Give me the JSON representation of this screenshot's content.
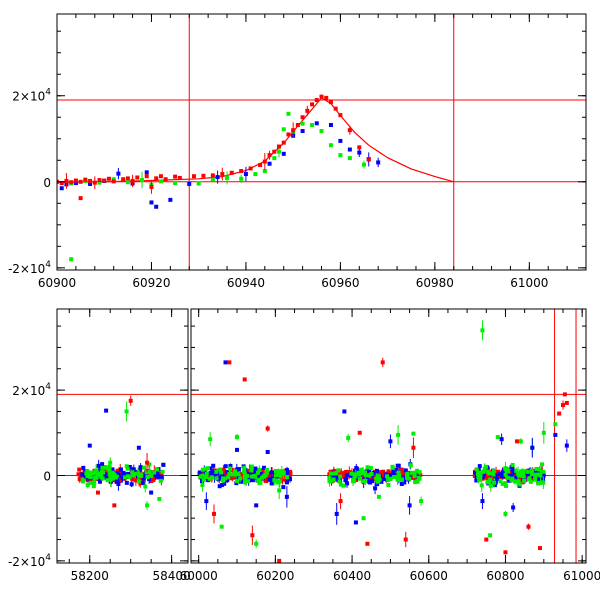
{
  "chart_data": [
    {
      "type": "scatter",
      "panel": "top",
      "title": "",
      "xlabel": "",
      "ylabel": "",
      "xlim": [
        60900,
        61012
      ],
      "ylim": [
        -20500,
        39000
      ],
      "x_ticks": [
        60900,
        60920,
        60940,
        60960,
        60980,
        61000
      ],
      "y_ticks": [
        {
          "value": -20000,
          "base": "-2×10",
          "exp": "4"
        },
        {
          "value": 0,
          "base": "0",
          "exp": ""
        },
        {
          "value": 20000,
          "base": "2×10",
          "exp": "4"
        }
      ],
      "hlines": [
        0,
        19000
      ],
      "vlines": [
        60928,
        60984
      ],
      "model_curve": {
        "color": "#ff0000",
        "x": [
          60900,
          60910,
          60920,
          60930,
          60935,
          60940,
          60944,
          60948,
          60951,
          60954,
          60956,
          60958,
          60960,
          60963,
          60966,
          60970,
          60975,
          60980,
          60984
        ],
        "y": [
          -120,
          0,
          300,
          700,
          1200,
          2600,
          4800,
          9000,
          13000,
          16900,
          19500,
          18200,
          15400,
          11500,
          8500,
          5600,
          3000,
          1200,
          0
        ]
      },
      "series": [
        {
          "name": "green",
          "color": "#00ee00",
          "x": [
            60901,
            60903,
            60906,
            60909,
            60912,
            60915,
            60918,
            60920,
            60922,
            60925,
            60930,
            60933,
            60936,
            60939,
            60942,
            60944,
            60946,
            60947,
            60948,
            60949,
            60950,
            60952,
            60954,
            60956,
            60958,
            60960,
            60962,
            60965,
            60903
          ],
          "y": [
            -300,
            -400,
            200,
            -200,
            600,
            -100,
            400,
            -700,
            100,
            -300,
            -400,
            500,
            900,
            700,
            1800,
            2500,
            5500,
            7000,
            12200,
            15800,
            11500,
            13500,
            13200,
            11800,
            8500,
            6200,
            5500,
            4000,
            -18000
          ]
        },
        {
          "name": "blue",
          "color": "#0000ff",
          "x": [
            60901,
            60902,
            60904,
            60907,
            60910,
            60913,
            60916,
            60919,
            60920,
            60921,
            60924,
            60928,
            60934,
            60940,
            60945,
            60948,
            60950,
            60952,
            60955,
            60958,
            60960,
            60962,
            60964,
            60966,
            60968
          ],
          "y": [
            -1500,
            -600,
            -300,
            -500,
            200,
            1900,
            -400,
            2200,
            -4800,
            -5800,
            -4200,
            -500,
            1100,
            1800,
            4200,
            6500,
            10700,
            11800,
            13600,
            13200,
            9500,
            7500,
            6800,
            5200,
            4500
          ]
        },
        {
          "name": "red",
          "color": "#ff0000",
          "x": [
            60900,
            60901,
            60902,
            60903,
            60904,
            60905,
            60906,
            60907,
            60908,
            60909,
            60910,
            60911,
            60912,
            60914,
            60915,
            60916,
            60917,
            60919,
            60920,
            60921,
            60922,
            60923,
            60925,
            60926,
            60929,
            60931,
            60933,
            60935,
            60937,
            60939,
            60941,
            60943,
            60944,
            60945,
            60946,
            60947,
            60948,
            60949,
            60950,
            60951,
            60952,
            60953,
            60954,
            60955,
            60956,
            60957,
            60958,
            60959,
            60960,
            60962,
            60964,
            60966,
            60905
          ],
          "y": [
            0,
            -300,
            200,
            -100,
            300,
            0,
            500,
            200,
            -200,
            400,
            300,
            700,
            100,
            600,
            800,
            200,
            1000,
            1300,
            -1200,
            800,
            1300,
            600,
            1200,
            900,
            1300,
            1400,
            1500,
            1800,
            2100,
            2500,
            3100,
            3900,
            4700,
            6200,
            7000,
            8200,
            9100,
            11000,
            12000,
            13200,
            15000,
            16500,
            18000,
            19000,
            19800,
            19500,
            18500,
            17000,
            15500,
            12000,
            8000,
            5300,
            -3800
          ]
        }
      ]
    },
    {
      "type": "scatter",
      "panel": "bottom",
      "title": "",
      "xlabel": "",
      "ylabel": "",
      "segments": [
        {
          "xlim": [
            58120,
            58440
          ],
          "x_ticks": [
            58200,
            58400
          ]
        },
        {
          "xlim": [
            59980,
            61010
          ],
          "x_ticks": [
            60000,
            60200,
            60400,
            60600,
            60800,
            61000
          ]
        }
      ],
      "ylim": [
        -20500,
        39000
      ],
      "y_ticks": [
        {
          "value": -20000,
          "base": "-2×10",
          "exp": "4"
        },
        {
          "value": 0,
          "base": "0",
          "exp": ""
        },
        {
          "value": 20000,
          "base": "2×10",
          "exp": "4"
        }
      ],
      "hlines": [
        0,
        19000
      ],
      "vlines": [
        60928,
        60984
      ],
      "dense_bands": [
        {
          "name": "red",
          "color": "#ff0000",
          "ranges": [
            [
              58170,
              58380
            ],
            [
              60000,
              60240
            ],
            [
              60340,
              60580
            ],
            [
              60720,
              60900
            ]
          ]
        },
        {
          "name": "blue",
          "color": "#0000ff",
          "ranges": [
            [
              58180,
              58380
            ],
            [
              60000,
              60240
            ],
            [
              60340,
              60580
            ],
            [
              60720,
              60900
            ]
          ]
        },
        {
          "name": "green",
          "color": "#00ee00",
          "ranges": [
            [
              58180,
              58380
            ],
            [
              60000,
              60240
            ],
            [
              60340,
              60580
            ],
            [
              60720,
              60900
            ]
          ]
        }
      ],
      "series": [
        {
          "name": "green",
          "color": "#00ee00",
          "x": [
            58210,
            58250,
            58290,
            58340,
            58370,
            60030,
            60060,
            60100,
            60150,
            60210,
            60390,
            60430,
            60470,
            60520,
            60560,
            60580,
            60740,
            60780,
            60800,
            60840,
            60760,
            60870,
            60900,
            60930
          ],
          "y": [
            -2500,
            3000,
            15000,
            -7000,
            -5500,
            8500,
            -12000,
            9000,
            -16000,
            -3500,
            8800,
            -10000,
            -5000,
            9500,
            9800,
            -6000,
            34000,
            9000,
            -9000,
            8000,
            -14000,
            6500,
            10000,
            12000
          ]
        },
        {
          "name": "blue",
          "color": "#0000ff",
          "x": [
            58200,
            58240,
            58270,
            58320,
            58350,
            58380,
            60020,
            60070,
            60100,
            60150,
            60180,
            60230,
            60360,
            60380,
            60410,
            60460,
            60500,
            60550,
            60740,
            60790,
            60820,
            60870,
            60930,
            60960
          ],
          "y": [
            7000,
            15200,
            -2000,
            6500,
            -4000,
            2500,
            -6000,
            26500,
            6000,
            -7000,
            5500,
            -5000,
            -9000,
            15000,
            -11000,
            -3000,
            8000,
            -7000,
            -6000,
            8500,
            -7500,
            6500,
            9500,
            7000
          ]
        },
        {
          "name": "red",
          "color": "#ff0000",
          "x": [
            58220,
            58260,
            58300,
            58340,
            60040,
            60080,
            60120,
            60140,
            60180,
            60210,
            60370,
            60420,
            60440,
            60480,
            60540,
            60560,
            60750,
            60800,
            60830,
            60860,
            60890,
            60940,
            60950,
            60955,
            60960
          ],
          "y": [
            -4000,
            -7000,
            17500,
            3000,
            -9000,
            26500,
            22500,
            -14000,
            11000,
            -20000,
            -6000,
            10000,
            -16000,
            26500,
            -15000,
            6500,
            -15000,
            -18000,
            8000,
            -12000,
            -17000,
            14500,
            16500,
            19000,
            17000
          ]
        }
      ]
    }
  ]
}
